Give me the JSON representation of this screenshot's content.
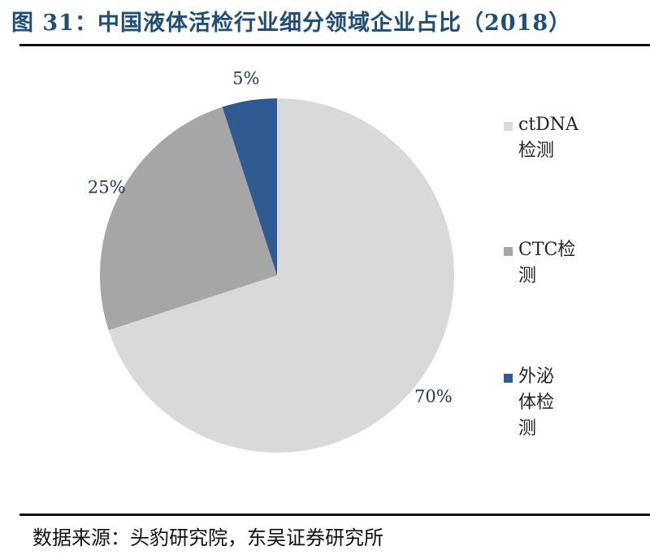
{
  "title": "图 31：中国液体活检行业细分领域企业占比（2018）",
  "source": "数据来源：头豹研究院，东吴证券研究所",
  "chart_data": {
    "type": "pie",
    "title": "中国液体活检行业细分领域企业占比（2018）",
    "start_angle_deg": 0,
    "direction": "clockwise",
    "slices": [
      {
        "label": "ctDNA检测",
        "value": 70,
        "display": "70%",
        "color": "#d9d9d9"
      },
      {
        "label": "CTC检测",
        "value": 25,
        "display": "25%",
        "color": "#a6a6a6"
      },
      {
        "label": "外泌体检测",
        "value": 5,
        "display": "5%",
        "color": "#2f5a92"
      }
    ],
    "legend": [
      "ctDNA检测",
      "CTC检测",
      "外泌体检测"
    ],
    "legend_position": "right"
  }
}
